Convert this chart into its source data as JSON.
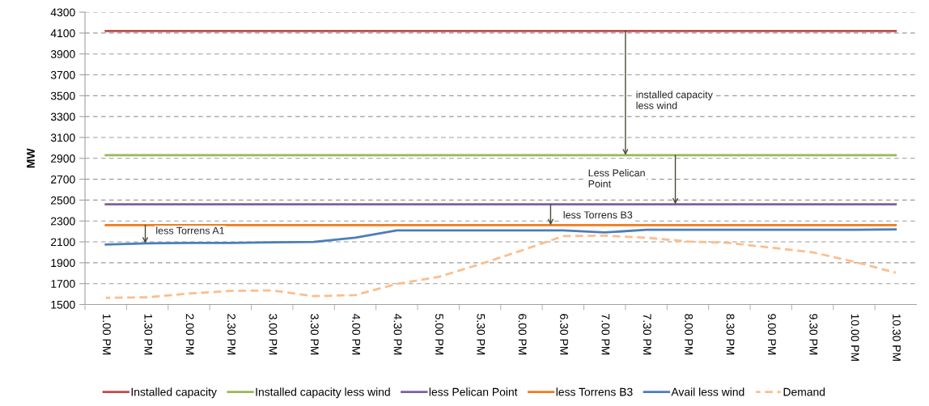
{
  "chart_data": {
    "type": "line",
    "ylabel": "MW",
    "categories": [
      "1.00 PM",
      "1.30 PM",
      "2.00 PM",
      "2.30 PM",
      "3.00 PM",
      "3.30 PM",
      "4.00 PM",
      "4.30 PM",
      "5.00 PM",
      "5.30 PM",
      "6.00 PM",
      "6.30 PM",
      "7.00 PM",
      "7.30 PM",
      "8.00 PM",
      "8.30 PM",
      "9.00 PM",
      "9.30 PM",
      "10.00 PM",
      "10.30 PM"
    ],
    "series": [
      {
        "name": "Installed capacity",
        "color": "#be4b48",
        "values": [
          4120,
          4120,
          4120,
          4120,
          4120,
          4120,
          4120,
          4120,
          4120,
          4120,
          4120,
          4120,
          4120,
          4120,
          4120,
          4120,
          4120,
          4120,
          4120,
          4120
        ]
      },
      {
        "name": "Installed capacity less wind",
        "color": "#98b954",
        "values": [
          2930,
          2930,
          2930,
          2930,
          2930,
          2930,
          2930,
          2930,
          2930,
          2930,
          2930,
          2930,
          2930,
          2930,
          2930,
          2930,
          2930,
          2930,
          2930,
          2930
        ]
      },
      {
        "name": "less Pelican Point",
        "color": "#7d60a0",
        "values": [
          2460,
          2460,
          2460,
          2460,
          2460,
          2460,
          2460,
          2460,
          2460,
          2460,
          2460,
          2460,
          2460,
          2460,
          2460,
          2460,
          2460,
          2460,
          2460,
          2460
        ]
      },
      {
        "name": "less Torrens B3",
        "color": "#f07c19",
        "values": [
          2260,
          2260,
          2260,
          2260,
          2260,
          2260,
          2260,
          2260,
          2260,
          2260,
          2260,
          2260,
          2260,
          2260,
          2260,
          2260,
          2260,
          2260,
          2260,
          2260
        ]
      },
      {
        "name": "Avail less wind",
        "color": "#4a7ebb",
        "values": [
          2075,
          2085,
          2090,
          2090,
          2095,
          2100,
          2140,
          2210,
          2210,
          2210,
          2210,
          2210,
          2190,
          2215,
          2215,
          2215,
          2215,
          2215,
          2215,
          2220
        ]
      },
      {
        "name": "Demand",
        "color": "#fbbe8d",
        "line_style": "dashed",
        "values": [
          1564,
          1569,
          1605,
          1630,
          1635,
          1580,
          1590,
          1697,
          1764,
          1886,
          2017,
          2155,
          2160,
          2140,
          2104,
          2089,
          2045,
          2000,
          1910,
          1805
        ]
      }
    ],
    "ylim": [
      1500,
      4300
    ],
    "yticks": [
      1500,
      1700,
      1900,
      2100,
      2300,
      2500,
      2700,
      2900,
      3100,
      3300,
      3500,
      3700,
      3900,
      4100,
      4300
    ],
    "grid": "y",
    "legend": "bottom",
    "line_style": "solid",
    "marker": "none",
    "annotations": [
      "installed capacity\nless wind",
      "Less Pelican\nPoint",
      "less Torrens B3",
      "less Torrens A1"
    ]
  }
}
